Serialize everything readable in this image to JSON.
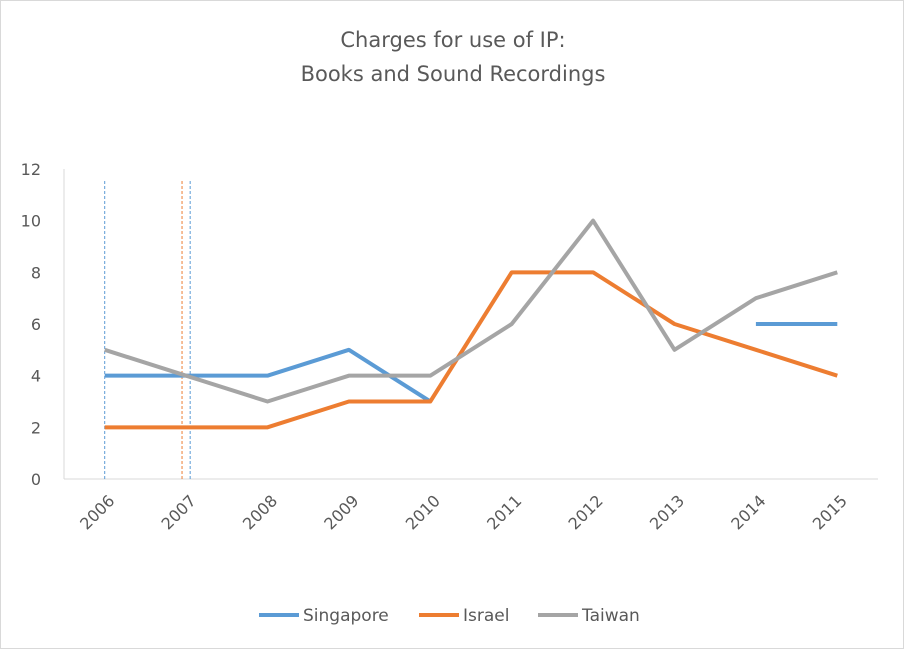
{
  "chart_data": {
    "type": "line",
    "title_lines": [
      "Charges for use of IP:",
      "Books and Sound Recordings"
    ],
    "x": [
      "2006",
      "2007",
      "2008",
      "2009",
      "2010",
      "2011",
      "2012",
      "2013",
      "2014",
      "2015"
    ],
    "yticks": [
      "0",
      "2",
      "4",
      "6",
      "8",
      "10",
      "12"
    ],
    "ylim": [
      0,
      12
    ],
    "grid": false,
    "legend_position": "bottom",
    "series": [
      {
        "name": "Singapore",
        "color": "#5b9bd5",
        "values": [
          4,
          4,
          4,
          5,
          3,
          null,
          null,
          null,
          6,
          6
        ]
      },
      {
        "name": "Israel",
        "color": "#ed7d31",
        "values": [
          2,
          2,
          2,
          3,
          3,
          8,
          8,
          6,
          5,
          4
        ]
      },
      {
        "name": "Taiwan",
        "color": "#a5a5a5",
        "values": [
          5,
          4,
          3,
          4,
          4,
          6,
          10,
          5,
          7,
          8
        ]
      }
    ],
    "annotations": [
      {
        "type": "vertical-dashed-line",
        "x": 2006.0,
        "color": "#5b9bd5"
      },
      {
        "type": "vertical-dashed-line",
        "x": 2006.95,
        "color": "#ed7d31"
      },
      {
        "type": "vertical-dashed-line",
        "x": 2007.05,
        "color": "#5b9bd5"
      }
    ]
  }
}
